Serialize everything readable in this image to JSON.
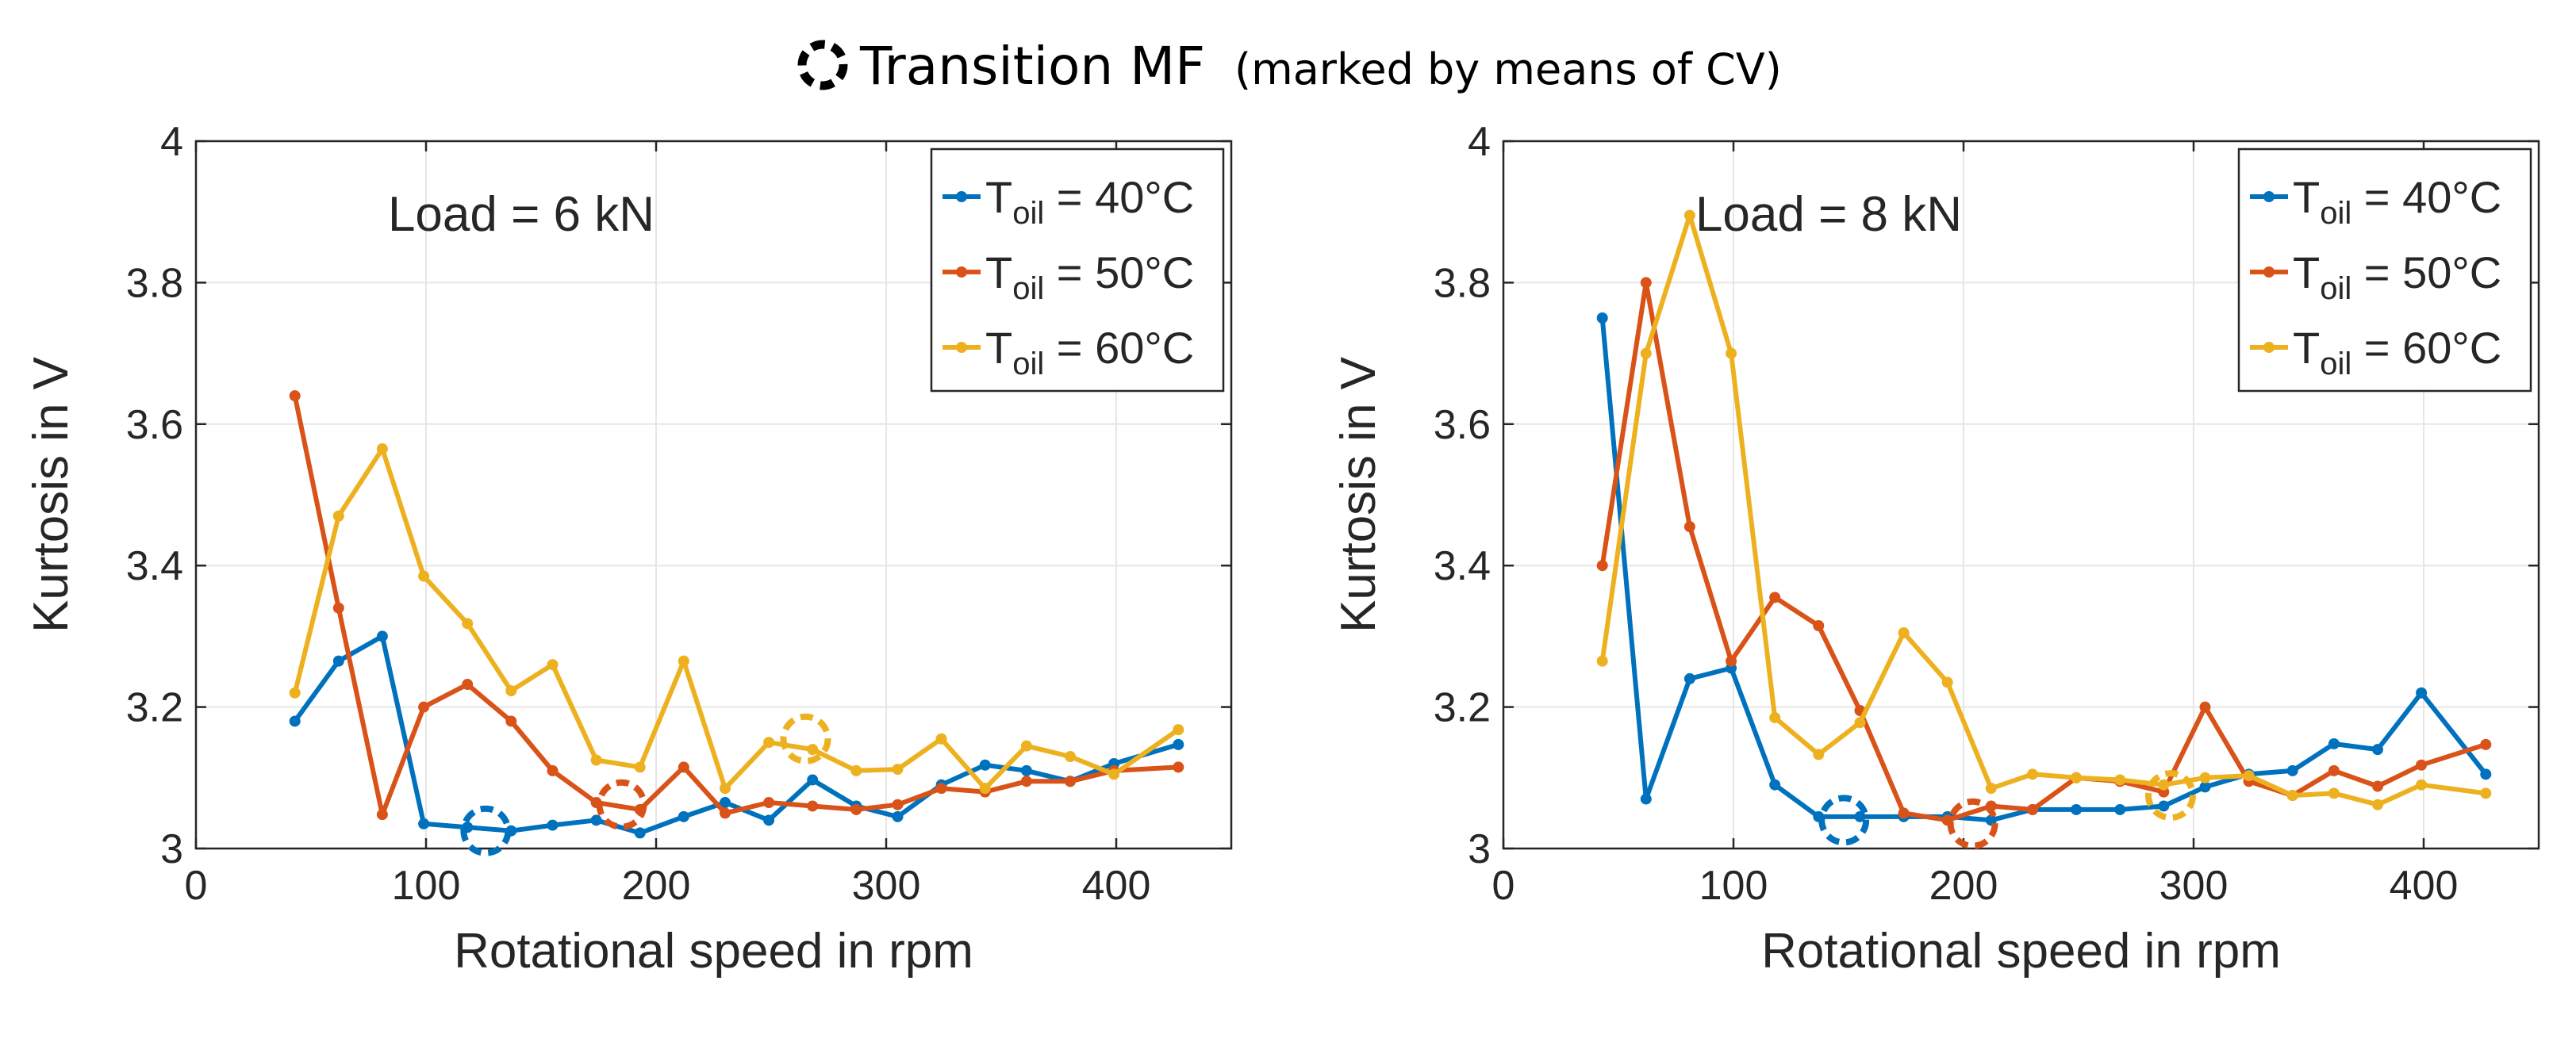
{
  "figure": {
    "title": "Transition MF",
    "title_note": "(marked by means of CV)",
    "title_marker_icon": "dashed-circle-icon"
  },
  "colors": {
    "series_40": "#0072BD",
    "series_50": "#D95319",
    "series_60": "#EDB120",
    "grid": "#e6e6e6",
    "axis": "#262626"
  },
  "chart_data": [
    {
      "type": "line",
      "annotation": "Load = 6 kN",
      "xlabel": "Rotational speed in rpm",
      "ylabel": "Kurtosis in V",
      "xlim": [
        0,
        450
      ],
      "ylim": [
        3,
        4
      ],
      "xticks": [
        0,
        100,
        200,
        300,
        400
      ],
      "yticks": [
        3,
        3.2,
        3.4,
        3.6,
        3.8,
        4
      ],
      "grid": true,
      "legend_position": "top-right",
      "series": [
        {
          "name": "T_oil = 40°C",
          "legend_base": "T",
          "legend_sub": "oil",
          "legend_rest": " = 40°C",
          "color": "#0072BD",
          "x": [
            43,
            62,
            81,
            99,
            118,
            137,
            155,
            174,
            193,
            212,
            230,
            249,
            268,
            287,
            305,
            324,
            343,
            361,
            380,
            399,
            427
          ],
          "y": [
            3.18,
            3.265,
            3.3,
            3.035,
            3.03,
            3.025,
            3.033,
            3.04,
            3.022,
            3.045,
            3.065,
            3.04,
            3.097,
            3.06,
            3.045,
            3.09,
            3.118,
            3.11,
            3.095,
            3.12,
            3.147
          ],
          "transition": [
            126,
            3.025
          ]
        },
        {
          "name": "T_oil = 50°C",
          "legend_base": "T",
          "legend_sub": "oil",
          "legend_rest": " = 50°C",
          "color": "#D95319",
          "x": [
            43,
            62,
            81,
            99,
            118,
            137,
            155,
            174,
            193,
            212,
            230,
            249,
            268,
            287,
            305,
            324,
            343,
            361,
            380,
            399,
            427
          ],
          "y": [
            3.64,
            3.34,
            3.048,
            3.2,
            3.232,
            3.18,
            3.11,
            3.065,
            3.055,
            3.115,
            3.05,
            3.065,
            3.06,
            3.055,
            3.062,
            3.085,
            3.08,
            3.095,
            3.095,
            3.11,
            3.115
          ],
          "transition": [
            185,
            3.062
          ]
        },
        {
          "name": "T_oil = 60°C",
          "legend_base": "T",
          "legend_sub": "oil",
          "legend_rest": " = 60°C",
          "color": "#EDB120",
          "x": [
            43,
            62,
            81,
            99,
            118,
            137,
            155,
            174,
            193,
            212,
            230,
            249,
            268,
            287,
            305,
            324,
            343,
            361,
            380,
            399,
            427
          ],
          "y": [
            3.22,
            3.47,
            3.565,
            3.385,
            3.318,
            3.223,
            3.26,
            3.125,
            3.115,
            3.265,
            3.085,
            3.15,
            3.14,
            3.11,
            3.112,
            3.155,
            3.085,
            3.145,
            3.13,
            3.105,
            3.168
          ],
          "transition": [
            265,
            3.155
          ]
        }
      ]
    },
    {
      "type": "line",
      "annotation": "Load = 8 kN",
      "xlabel": "Rotational speed in rpm",
      "ylabel": "Kurtosis in V",
      "xlim": [
        0,
        450
      ],
      "ylim": [
        3,
        4
      ],
      "xticks": [
        0,
        100,
        200,
        300,
        400
      ],
      "yticks": [
        3,
        3.2,
        3.4,
        3.6,
        3.8,
        4
      ],
      "grid": true,
      "legend_position": "top-right",
      "series": [
        {
          "name": "T_oil = 40°C",
          "legend_base": "T",
          "legend_sub": "oil",
          "legend_rest": " = 40°C",
          "color": "#0072BD",
          "x": [
            43,
            62,
            81,
            99,
            118,
            137,
            155,
            174,
            193,
            212,
            230,
            249,
            268,
            287,
            305,
            324,
            343,
            361,
            380,
            399,
            427
          ],
          "y": [
            3.75,
            3.07,
            3.24,
            3.255,
            3.09,
            3.045,
            3.045,
            3.045,
            3.045,
            3.04,
            3.055,
            3.055,
            3.055,
            3.06,
            3.087,
            3.105,
            3.11,
            3.148,
            3.14,
            3.22,
            3.105
          ],
          "transition": [
            148,
            3.04
          ]
        },
        {
          "name": "T_oil = 50°C",
          "legend_base": "T",
          "legend_sub": "oil",
          "legend_rest": " = 50°C",
          "color": "#D95319",
          "x": [
            43,
            62,
            81,
            99,
            118,
            137,
            155,
            174,
            193,
            212,
            230,
            249,
            268,
            287,
            305,
            324,
            343,
            361,
            380,
            399,
            427
          ],
          "y": [
            3.4,
            3.8,
            3.455,
            3.265,
            3.355,
            3.315,
            3.195,
            3.05,
            3.04,
            3.06,
            3.055,
            3.1,
            3.095,
            3.08,
            3.2,
            3.095,
            3.075,
            3.11,
            3.088,
            3.118,
            3.147
          ],
          "transition": [
            204,
            3.035
          ]
        },
        {
          "name": "T_oil = 60°C",
          "legend_base": "T",
          "legend_sub": "oil",
          "legend_rest": " = 60°C",
          "color": "#EDB120",
          "x": [
            43,
            62,
            81,
            99,
            118,
            137,
            155,
            174,
            193,
            212,
            230,
            249,
            268,
            287,
            305,
            324,
            343,
            361,
            380,
            399,
            427
          ],
          "y": [
            3.265,
            3.7,
            3.895,
            3.7,
            3.185,
            3.133,
            3.178,
            3.305,
            3.235,
            3.085,
            3.105,
            3.1,
            3.097,
            3.09,
            3.1,
            3.103,
            3.075,
            3.078,
            3.062,
            3.09,
            3.078
          ],
          "transition": [
            290,
            3.075
          ]
        }
      ]
    }
  ]
}
